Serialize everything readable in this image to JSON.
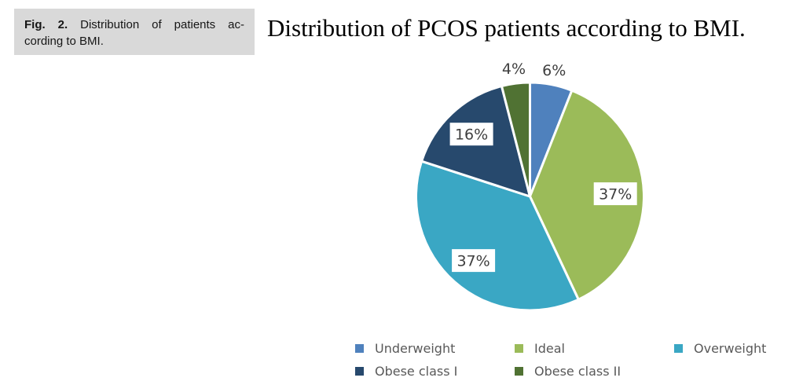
{
  "caption": {
    "fig_label": "Fig. 2.",
    "line1": "Distribution of patients ac-",
    "line2": "cording to BMI."
  },
  "title": "Distribution of PCOS patients according to BMI.",
  "chart_data": {
    "type": "pie",
    "title": "Distribution of PCOS patients according to BMI.",
    "start_angle_deg": 0,
    "direction": "clockwise",
    "total": 100,
    "slices": [
      {
        "label": "Underweight",
        "value_pct": 6,
        "color": "#4f81bd",
        "data_label": "6%",
        "label_placement": "outside"
      },
      {
        "label": "Ideal",
        "value_pct": 37,
        "color": "#9bbb59",
        "data_label": "37%",
        "label_placement": "inside-boxed"
      },
      {
        "label": "Overweight",
        "value_pct": 37,
        "color": "#3aa7c4",
        "data_label": "37%",
        "label_placement": "inside-boxed"
      },
      {
        "label": "Obese class I",
        "value_pct": 16,
        "color": "#27496d",
        "data_label": "16%",
        "label_placement": "inside-boxed"
      },
      {
        "label": "Obese class II",
        "value_pct": 4,
        "color": "#507233",
        "data_label": "4%",
        "label_placement": "outside"
      }
    ],
    "legend_position": "bottom",
    "legend_columns": 3,
    "gridlines": false
  },
  "colors": {
    "caption_bg": "#d9d9d9",
    "slice_separator": "#ffffff",
    "data_label_text": "#3f3f3f",
    "data_label_box_bg": "#ffffff",
    "legend_text": "#595959",
    "title_text": "#000000"
  }
}
